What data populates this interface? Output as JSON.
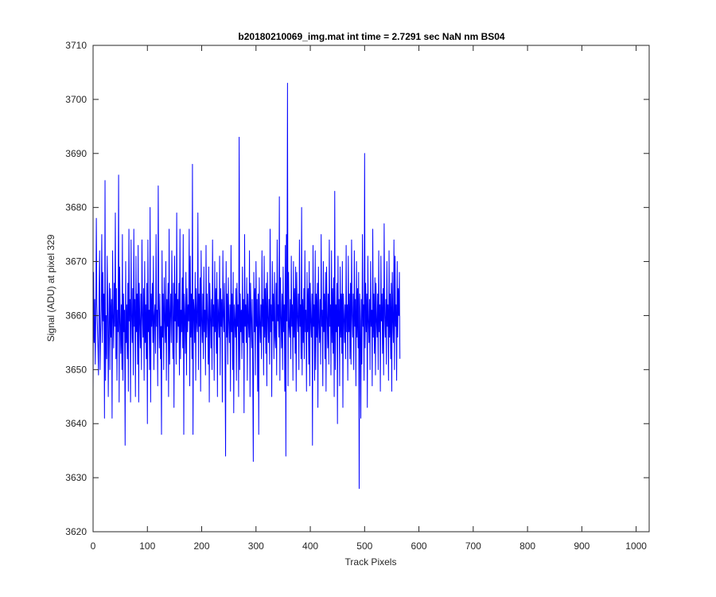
{
  "chart_data": {
    "type": "line",
    "title": "b20180210069_img.mat int time = 2.7291 sec  NaN nm BS04",
    "xlabel": "Track Pixels",
    "ylabel": "Signal (ADU) at pixel 329",
    "xlim": [
      0,
      1024
    ],
    "ylim": [
      3620,
      3710
    ],
    "xticks": [
      0,
      100,
      200,
      300,
      400,
      500,
      600,
      700,
      800,
      900,
      1000
    ],
    "yticks": [
      3620,
      3630,
      3640,
      3650,
      3660,
      3670,
      3680,
      3690,
      3700,
      3710
    ],
    "grid": false,
    "legend": "none",
    "series": [
      {
        "color": "#0000ff",
        "x_start": 0,
        "x_step": 1,
        "values": [
          3646,
          3668,
          3655,
          3663,
          3651,
          3660,
          3678,
          3662,
          3658,
          3654,
          3649,
          3664,
          3672,
          3650,
          3657,
          3661,
          3675,
          3655,
          3668,
          3659,
          3664,
          3641,
          3685,
          3648,
          3660,
          3652,
          3671,
          3662,
          3645,
          3659,
          3666,
          3650,
          3665,
          3656,
          3663,
          3641,
          3672,
          3660,
          3654,
          3666,
          3658,
          3679,
          3652,
          3665,
          3648,
          3661,
          3657,
          3686,
          3644,
          3669,
          3659,
          3653,
          3662,
          3650,
          3675,
          3648,
          3664,
          3657,
          3661,
          3636,
          3670,
          3655,
          3662,
          3652,
          3666,
          3646,
          3676,
          3659,
          3663,
          3644,
          3674,
          3660,
          3655,
          3665,
          3649,
          3676,
          3658,
          3663,
          3645,
          3671,
          3657,
          3664,
          3651,
          3673,
          3644,
          3666,
          3659,
          3654,
          3664,
          3650,
          3674,
          3660,
          3656,
          3665,
          3648,
          3670,
          3655,
          3662,
          3652,
          3666,
          3640,
          3674,
          3657,
          3661,
          3650,
          3680,
          3644,
          3664,
          3658,
          3666,
          3655,
          3671,
          3650,
          3660,
          3662,
          3653,
          3675,
          3658,
          3661,
          3647,
          3684,
          3662,
          3654,
          3664,
          3652,
          3658,
          3638,
          3672,
          3656,
          3664,
          3650,
          3667,
          3659,
          3655,
          3670,
          3648,
          3663,
          3658,
          3666,
          3645,
          3676,
          3651,
          3660,
          3664,
          3655,
          3672,
          3660,
          3652,
          3666,
          3643,
          3671,
          3659,
          3664,
          3651,
          3679,
          3655,
          3663,
          3658,
          3666,
          3649,
          3676,
          3652,
          3661,
          3657,
          3667,
          3654,
          3675,
          3638,
          3664,
          3660,
          3653,
          3668,
          3649,
          3665,
          3657,
          3662,
          3659,
          3676,
          3647,
          3671,
          3656,
          3664,
          3652,
          3688,
          3638,
          3663,
          3661,
          3655,
          3668,
          3648,
          3665,
          3659,
          3657,
          3679,
          3650,
          3664,
          3658,
          3667,
          3646,
          3672,
          3659,
          3655,
          3664,
          3652,
          3669,
          3657,
          3661,
          3649,
          3673,
          3656,
          3664,
          3659,
          3651,
          3669,
          3644,
          3666,
          3660,
          3654,
          3663,
          3650,
          3674,
          3658,
          3662,
          3648,
          3670,
          3657,
          3665,
          3653,
          3668,
          3645,
          3663,
          3660,
          3656,
          3671,
          3649,
          3665,
          3658,
          3663,
          3644,
          3672,
          3660,
          3657,
          3666,
          3652,
          3634,
          3670,
          3656,
          3664,
          3651,
          3667,
          3659,
          3655,
          3662,
          3646,
          3673,
          3657,
          3664,
          3650,
          3668,
          3642,
          3662,
          3659,
          3656,
          3665,
          3648,
          3666,
          3658,
          3662,
          3645,
          3693,
          3650,
          3664,
          3657,
          3661,
          3652,
          3669,
          3655,
          3663,
          3642,
          3675,
          3658,
          3662,
          3655,
          3667,
          3648,
          3664,
          3659,
          3656,
          3672,
          3645,
          3666,
          3660,
          3654,
          3663,
          3650,
          3633,
          3668,
          3657,
          3665,
          3649,
          3670,
          3658,
          3663,
          3646,
          3664,
          3638,
          3667,
          3659,
          3655,
          3662,
          3652,
          3672,
          3658,
          3663,
          3649,
          3671,
          3656,
          3665,
          3653,
          3666,
          3647,
          3668,
          3660,
          3655,
          3663,
          3651,
          3676,
          3657,
          3662,
          3645,
          3670,
          3659,
          3664,
          3652,
          3668,
          3656,
          3654,
          3666,
          3649,
          3674,
          3659,
          3662,
          3656,
          3682,
          3648,
          3667,
          3660,
          3654,
          3664,
          3650,
          3669,
          3657,
          3662,
          3646,
          3673,
          3634,
          3675,
          3659,
          3703,
          3647,
          3668,
          3658,
          3656,
          3663,
          3652,
          3671,
          3658,
          3662,
          3648,
          3670,
          3656,
          3665,
          3653,
          3669,
          3646,
          3668,
          3660,
          3657,
          3664,
          3650,
          3674,
          3658,
          3662,
          3652,
          3680,
          3649,
          3663,
          3655,
          3665,
          3652,
          3672,
          3657,
          3661,
          3646,
          3668,
          3657,
          3665,
          3651,
          3670,
          3647,
          3666,
          3659,
          3656,
          3664,
          3636,
          3673,
          3658,
          3662,
          3648,
          3672,
          3650,
          3664,
          3656,
          3666,
          3643,
          3669,
          3659,
          3655,
          3663,
          3651,
          3675,
          3658,
          3661,
          3647,
          3670,
          3657,
          3664,
          3652,
          3668,
          3646,
          3669,
          3660,
          3654,
          3664,
          3651,
          3674,
          3658,
          3662,
          3649,
          3672,
          3655,
          3665,
          3653,
          3667,
          3645,
          3683,
          3650,
          3662,
          3657,
          3666,
          3640,
          3671,
          3658,
          3663,
          3647,
          3669,
          3656,
          3664,
          3653,
          3670,
          3643,
          3664,
          3660,
          3655,
          3662,
          3652,
          3673,
          3657,
          3662,
          3648,
          3671,
          3657,
          3664,
          3652,
          3666,
          3651,
          3674,
          3660,
          3656,
          3664,
          3650,
          3672,
          3658,
          3663,
          3647,
          3670,
          3656,
          3665,
          3654,
          3668,
          3628,
          3664,
          3659,
          3641,
          3663,
          3651,
          3675,
          3658,
          3662,
          3648,
          3690,
          3654,
          3666,
          3657,
          3664,
          3643,
          3671,
          3659,
          3655,
          3663,
          3650,
          3670,
          3658,
          3661,
          3647,
          3676,
          3656,
          3664,
          3653,
          3667,
          3649,
          3666,
          3659,
          3656,
          3664,
          3650,
          3672,
          3657,
          3662,
          3646,
          3671,
          3659,
          3664,
          3653,
          3665,
          3649,
          3677,
          3660,
          3656,
          3663,
          3651,
          3670,
          3658,
          3662,
          3648,
          3672,
          3656,
          3664,
          3652,
          3666,
          3646,
          3668,
          3659,
          3655,
          3674,
          3650,
          3671,
          3658,
          3662,
          3648,
          3670,
          3656,
          3665,
          3660,
          3668,
          3652
        ]
      }
    ]
  }
}
